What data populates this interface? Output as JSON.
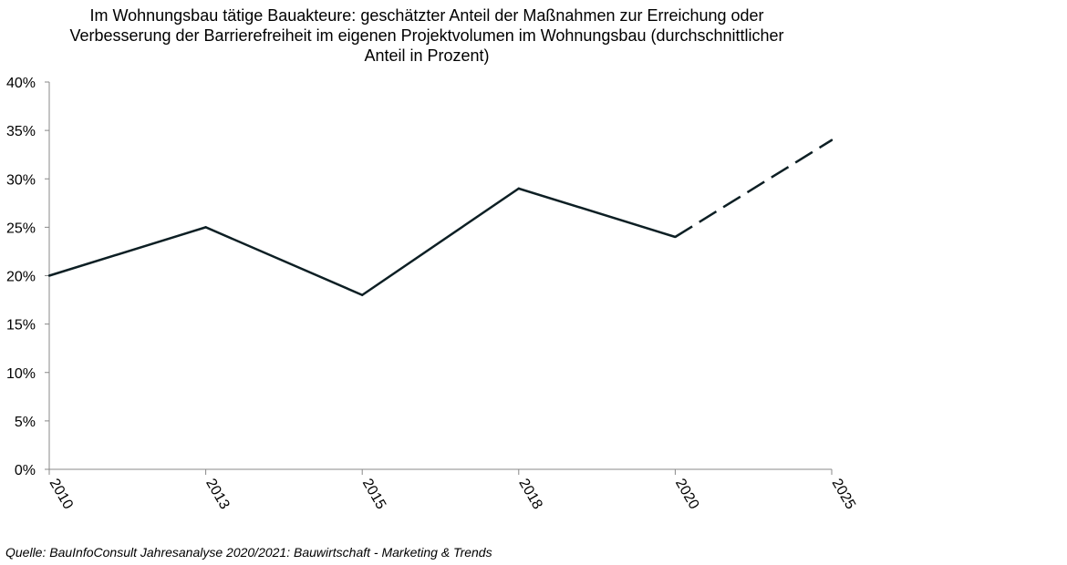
{
  "chart_data": {
    "type": "line",
    "title_lines": [
      "Im Wohnungsbau tätige Bauakteure: geschätzter Anteil der Maßnahmen zur Erreichung oder",
      "Verbesserung der Barrierefreiheit im eigenen Projektvolumen im Wohnungsbau (durchschnittlicher",
      "Anteil in Prozent)"
    ],
    "xlabel": "",
    "ylabel": "",
    "categories": [
      "2010",
      "2013",
      "2015",
      "2018",
      "2020",
      "2025"
    ],
    "series": [
      {
        "values": [
          20,
          25,
          18,
          29,
          24,
          34
        ],
        "line_color": "#0d1f24",
        "forecast_from_index": 4
      }
    ],
    "y_unit": "%",
    "ylim": [
      0,
      40
    ],
    "y_ticks": [
      0,
      5,
      10,
      15,
      20,
      25,
      30,
      35,
      40
    ],
    "grid": false,
    "legend": "none"
  },
  "source": "Quelle: BauInfoConsult Jahresanalyse 2020/2021: Bauwirtschaft  - Marketing & Trends"
}
